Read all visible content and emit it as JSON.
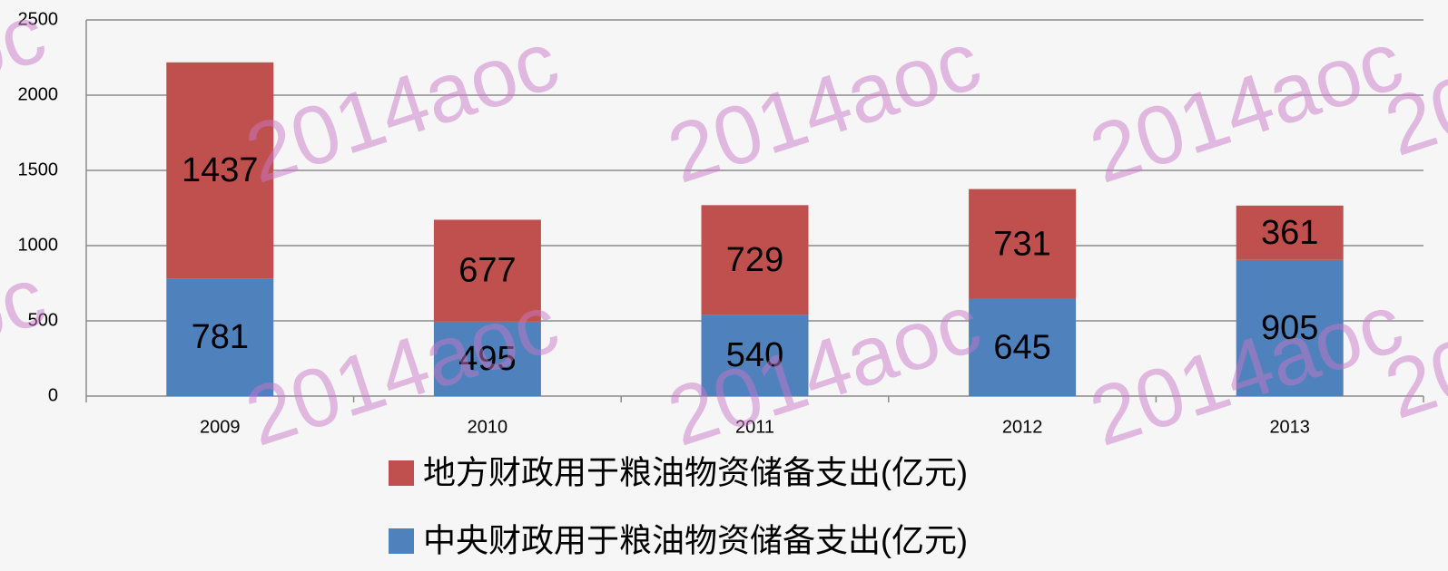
{
  "chart_data": {
    "type": "bar",
    "stacked": true,
    "categories": [
      "2009",
      "2010",
      "2011",
      "2012",
      "2013"
    ],
    "series": [
      {
        "name": "中央财政用于粮油物资储备支出(亿元)",
        "color": "#4f81bd",
        "values": [
          781,
          495,
          540,
          645,
          905
        ]
      },
      {
        "name": "地方财政用于粮油物资储备支出(亿元)",
        "color": "#c0504d",
        "values": [
          1437,
          677,
          729,
          731,
          361
        ]
      }
    ],
    "ylim": [
      0,
      2500
    ],
    "yticks": [
      0,
      500,
      1000,
      1500,
      2000,
      2500
    ],
    "grid": true,
    "legend": "bottom",
    "watermark": "2014aoc"
  }
}
